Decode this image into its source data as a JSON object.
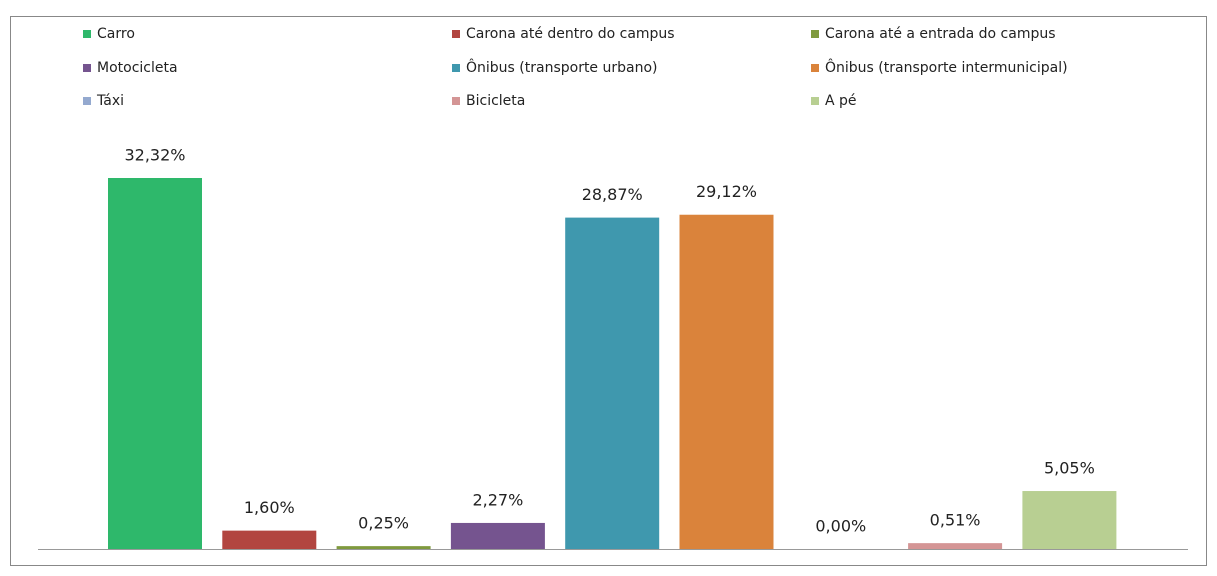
{
  "chart_data": {
    "type": "bar",
    "series": [
      {
        "name": "Carro",
        "color": "#2eb86b",
        "values": [
          32.32
        ],
        "value_labels": [
          "32,32%"
        ]
      },
      {
        "name": "Carona até dentro do campus",
        "color": "#b24540",
        "values": [
          1.6
        ],
        "value_labels": [
          "1,60%"
        ]
      },
      {
        "name": "Carona até a entrada do campus",
        "color": "#7f9a3e",
        "values": [
          0.25
        ],
        "value_labels": [
          "0,25%"
        ]
      },
      {
        "name": "Motocicleta",
        "color": "#75548f",
        "values": [
          2.27
        ],
        "value_labels": [
          "2,27%"
        ]
      },
      {
        "name": "Ônibus (transporte urbano)",
        "color": "#3f98ae",
        "values": [
          28.87
        ],
        "value_labels": [
          "28,87%"
        ]
      },
      {
        "name": "Ônibus (transporte intermunicipal)",
        "color": "#da833b",
        "values": [
          29.12
        ],
        "value_labels": [
          "29,12%"
        ]
      },
      {
        "name": "Táxi",
        "color": "#94a9cf",
        "values": [
          0.0
        ],
        "value_labels": [
          "0,00%"
        ]
      },
      {
        "name": "Bicicleta",
        "color": "#d49595",
        "values": [
          0.51
        ],
        "value_labels": [
          "0,51%"
        ]
      },
      {
        "name": "A pé",
        "color": "#b8cf92",
        "values": [
          5.05
        ],
        "value_labels": [
          "5,05%"
        ]
      }
    ]
  }
}
